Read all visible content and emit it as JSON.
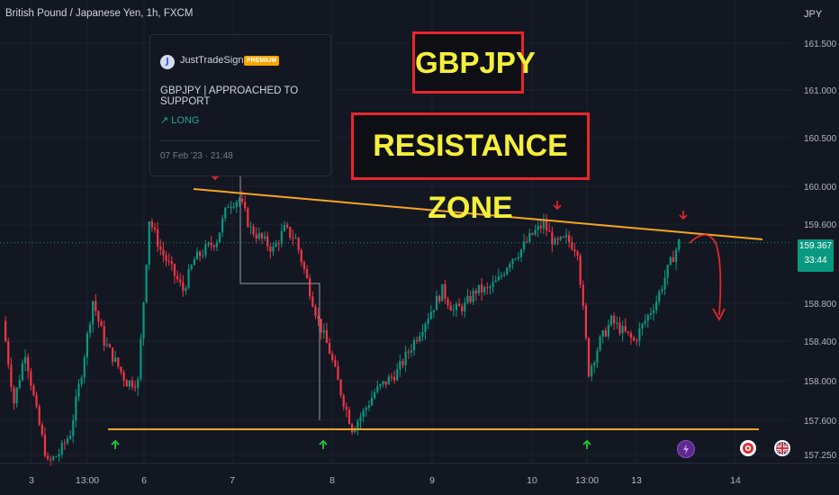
{
  "symbol_label": "British Pound / Japanese Yen, 1h, FXCM",
  "currency_label": "JPY",
  "overlay_titles": {
    "pair": "GBPJPY",
    "zone": "RESISTANCE ZONE"
  },
  "idea_card": {
    "author_initial": "J",
    "author": "JustTradeSignals",
    "badge": "PREMIUM",
    "title": "GBPJPY | APPROACHED TO SUPPORT",
    "direction": "↗ LONG",
    "date": "07 Feb '23 · 21:48"
  },
  "price_badge": {
    "price": "159.367",
    "countdown": "33:44"
  },
  "colors": {
    "background": "#131722",
    "grid": "#1e222d",
    "up": "#089981",
    "down": "#f23645",
    "trendline": "#f5a623",
    "arrow_red": "#e8262b",
    "arrow_green": "#20c838",
    "title_text": "#f6ef3a"
  },
  "icons": [
    "lightning-event-icon",
    "target-event-icon",
    "uk-flag-event-icon"
  ],
  "chart_data": {
    "type": "candlestick",
    "ylim": [
      157.2,
      161.75
    ],
    "y_ticks": [
      "161.500",
      "161.000",
      "160.500",
      "160.000",
      "159.600",
      "158.800",
      "158.400",
      "158.000",
      "157.600",
      "157.250"
    ],
    "x_ticks": [
      "3",
      "13:00",
      "6",
      "7",
      "8",
      "9",
      "10",
      "13:00",
      "13",
      "14"
    ],
    "last_price": 159.367,
    "close_path": [
      [
        0,
        158.6
      ],
      [
        4,
        157.8
      ],
      [
        8,
        158.3
      ],
      [
        12,
        157.7
      ],
      [
        16,
        157.2
      ],
      [
        20,
        157.3
      ],
      [
        24,
        157.5
      ],
      [
        28,
        158.1
      ],
      [
        32,
        158.8
      ],
      [
        36,
        158.4
      ],
      [
        40,
        158.2
      ],
      [
        44,
        158.0
      ],
      [
        48,
        158.0
      ],
      [
        52,
        159.6
      ],
      [
        56,
        159.3
      ],
      [
        60,
        159.1
      ],
      [
        64,
        158.9
      ],
      [
        68,
        159.2
      ],
      [
        72,
        159.3
      ],
      [
        76,
        159.4
      ],
      [
        80,
        159.75
      ],
      [
        84,
        159.8
      ],
      [
        88,
        159.5
      ],
      [
        92,
        159.4
      ],
      [
        96,
        159.3
      ],
      [
        100,
        159.5
      ],
      [
        104,
        159.4
      ],
      [
        108,
        159.0
      ],
      [
        112,
        158.6
      ],
      [
        116,
        158.3
      ],
      [
        120,
        157.9
      ],
      [
        124,
        157.55
      ],
      [
        128,
        157.7
      ],
      [
        132,
        157.9
      ],
      [
        136,
        158.0
      ],
      [
        140,
        158.1
      ],
      [
        144,
        158.3
      ],
      [
        148,
        158.5
      ],
      [
        152,
        158.7
      ],
      [
        156,
        158.9
      ],
      [
        160,
        158.7
      ],
      [
        164,
        158.75
      ],
      [
        168,
        158.9
      ],
      [
        172,
        158.9
      ],
      [
        176,
        159.0
      ],
      [
        180,
        159.2
      ],
      [
        184,
        159.3
      ],
      [
        188,
        159.45
      ],
      [
        192,
        159.55
      ],
      [
        196,
        159.35
      ],
      [
        200,
        159.4
      ],
      [
        204,
        159.3
      ],
      [
        208,
        158.1
      ],
      [
        212,
        158.4
      ],
      [
        216,
        158.6
      ],
      [
        220,
        158.5
      ],
      [
        224,
        158.4
      ],
      [
        228,
        158.6
      ],
      [
        232,
        158.8
      ],
      [
        236,
        159.1
      ],
      [
        240,
        159.37
      ]
    ]
  }
}
